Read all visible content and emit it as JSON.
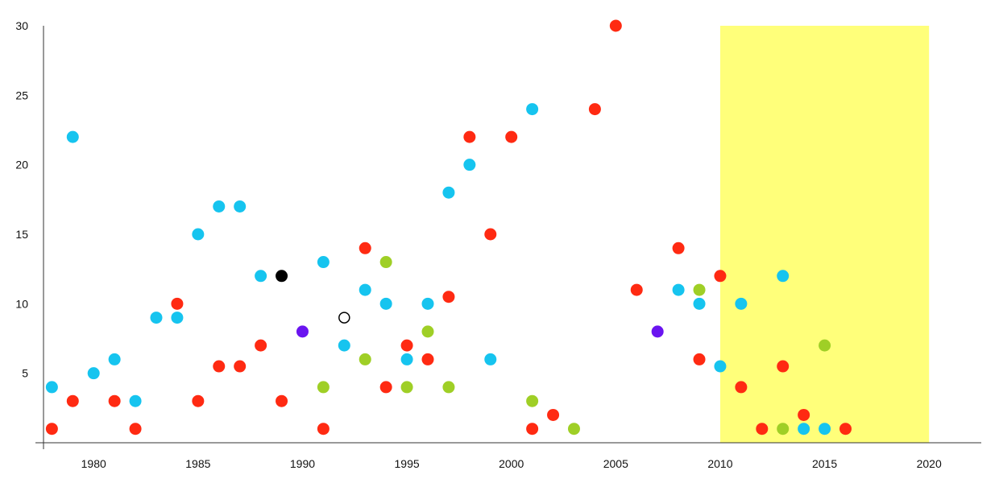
{
  "chart_data": {
    "type": "scatter",
    "title": "",
    "xlabel": "",
    "ylabel": "",
    "xlim": [
      1977.6,
      2022.5
    ],
    "ylim": [
      0,
      30
    ],
    "x_ticks": [
      1980,
      1985,
      1990,
      1995,
      2000,
      2005,
      2010,
      2015,
      2020
    ],
    "y_ticks": [
      5,
      10,
      15,
      20,
      25,
      30
    ],
    "grid": false,
    "highlight_band": {
      "x_start": 2010,
      "x_end": 2020,
      "color": "#ffff7a"
    },
    "colors": {
      "red": "#ff2a12",
      "cyan": "#16c4ef",
      "green": "#9fcf26",
      "purple": "#6a14f0",
      "black": "#000000",
      "hollow": "#ffffff"
    },
    "points": [
      {
        "x": 1978,
        "y": 4,
        "c": "cyan"
      },
      {
        "x": 1978,
        "y": 1,
        "c": "red"
      },
      {
        "x": 1979,
        "y": 22,
        "c": "cyan"
      },
      {
        "x": 1979,
        "y": 3,
        "c": "red"
      },
      {
        "x": 1980,
        "y": 5,
        "c": "cyan"
      },
      {
        "x": 1981,
        "y": 6,
        "c": "cyan"
      },
      {
        "x": 1981,
        "y": 3,
        "c": "red"
      },
      {
        "x": 1982,
        "y": 3,
        "c": "cyan"
      },
      {
        "x": 1982,
        "y": 1,
        "c": "red"
      },
      {
        "x": 1983,
        "y": 9,
        "c": "cyan"
      },
      {
        "x": 1984,
        "y": 10,
        "c": "red"
      },
      {
        "x": 1984,
        "y": 9,
        "c": "cyan"
      },
      {
        "x": 1985,
        "y": 15,
        "c": "cyan"
      },
      {
        "x": 1985,
        "y": 3,
        "c": "red"
      },
      {
        "x": 1986,
        "y": 17,
        "c": "cyan"
      },
      {
        "x": 1986,
        "y": 5.5,
        "c": "red"
      },
      {
        "x": 1987,
        "y": 17,
        "c": "cyan"
      },
      {
        "x": 1987,
        "y": 5.5,
        "c": "red"
      },
      {
        "x": 1988,
        "y": 12,
        "c": "cyan"
      },
      {
        "x": 1988,
        "y": 7,
        "c": "red"
      },
      {
        "x": 1989,
        "y": 12,
        "c": "black"
      },
      {
        "x": 1989,
        "y": 3,
        "c": "red"
      },
      {
        "x": 1990,
        "y": 8,
        "c": "purple"
      },
      {
        "x": 1991,
        "y": 13,
        "c": "cyan"
      },
      {
        "x": 1991,
        "y": 4,
        "c": "green"
      },
      {
        "x": 1991,
        "y": 1,
        "c": "red"
      },
      {
        "x": 1992,
        "y": 9,
        "c": "hollow"
      },
      {
        "x": 1992,
        "y": 7,
        "c": "cyan"
      },
      {
        "x": 1993,
        "y": 14,
        "c": "red"
      },
      {
        "x": 1993,
        "y": 11,
        "c": "cyan"
      },
      {
        "x": 1993,
        "y": 6,
        "c": "green"
      },
      {
        "x": 1994,
        "y": 13,
        "c": "green"
      },
      {
        "x": 1994,
        "y": 10,
        "c": "cyan"
      },
      {
        "x": 1994,
        "y": 4,
        "c": "red"
      },
      {
        "x": 1995,
        "y": 7,
        "c": "red"
      },
      {
        "x": 1995,
        "y": 6,
        "c": "cyan"
      },
      {
        "x": 1995,
        "y": 4,
        "c": "green"
      },
      {
        "x": 1996,
        "y": 10,
        "c": "cyan"
      },
      {
        "x": 1996,
        "y": 8,
        "c": "green"
      },
      {
        "x": 1996,
        "y": 6,
        "c": "red"
      },
      {
        "x": 1997,
        "y": 18,
        "c": "cyan"
      },
      {
        "x": 1997,
        "y": 10.5,
        "c": "red"
      },
      {
        "x": 1997,
        "y": 4,
        "c": "green"
      },
      {
        "x": 1998,
        "y": 22,
        "c": "red"
      },
      {
        "x": 1998,
        "y": 20,
        "c": "cyan"
      },
      {
        "x": 1999,
        "y": 15,
        "c": "red"
      },
      {
        "x": 1999,
        "y": 6,
        "c": "cyan"
      },
      {
        "x": 2000,
        "y": 22,
        "c": "red"
      },
      {
        "x": 2001,
        "y": 24,
        "c": "cyan"
      },
      {
        "x": 2001,
        "y": 3,
        "c": "green"
      },
      {
        "x": 2001,
        "y": 1,
        "c": "red"
      },
      {
        "x": 2002,
        "y": 2,
        "c": "red"
      },
      {
        "x": 2003,
        "y": 1,
        "c": "green"
      },
      {
        "x": 2004,
        "y": 24,
        "c": "red"
      },
      {
        "x": 2005,
        "y": 30,
        "c": "red"
      },
      {
        "x": 2006,
        "y": 11,
        "c": "red"
      },
      {
        "x": 2007,
        "y": 8,
        "c": "purple"
      },
      {
        "x": 2008,
        "y": 14,
        "c": "red"
      },
      {
        "x": 2008,
        "y": 11,
        "c": "cyan"
      },
      {
        "x": 2009,
        "y": 11,
        "c": "green"
      },
      {
        "x": 2009,
        "y": 10,
        "c": "cyan"
      },
      {
        "x": 2009,
        "y": 6,
        "c": "red"
      },
      {
        "x": 2010,
        "y": 12,
        "c": "red"
      },
      {
        "x": 2010,
        "y": 5.5,
        "c": "cyan"
      },
      {
        "x": 2011,
        "y": 10,
        "c": "cyan"
      },
      {
        "x": 2011,
        "y": 4,
        "c": "red"
      },
      {
        "x": 2012,
        "y": 1,
        "c": "red"
      },
      {
        "x": 2013,
        "y": 12,
        "c": "cyan"
      },
      {
        "x": 2013,
        "y": 5.5,
        "c": "red"
      },
      {
        "x": 2013,
        "y": 1,
        "c": "green"
      },
      {
        "x": 2014,
        "y": 2,
        "c": "red"
      },
      {
        "x": 2014,
        "y": 1,
        "c": "cyan"
      },
      {
        "x": 2015,
        "y": 7,
        "c": "green"
      },
      {
        "x": 2015,
        "y": 1,
        "c": "cyan"
      },
      {
        "x": 2016,
        "y": 1,
        "c": "red"
      }
    ]
  }
}
